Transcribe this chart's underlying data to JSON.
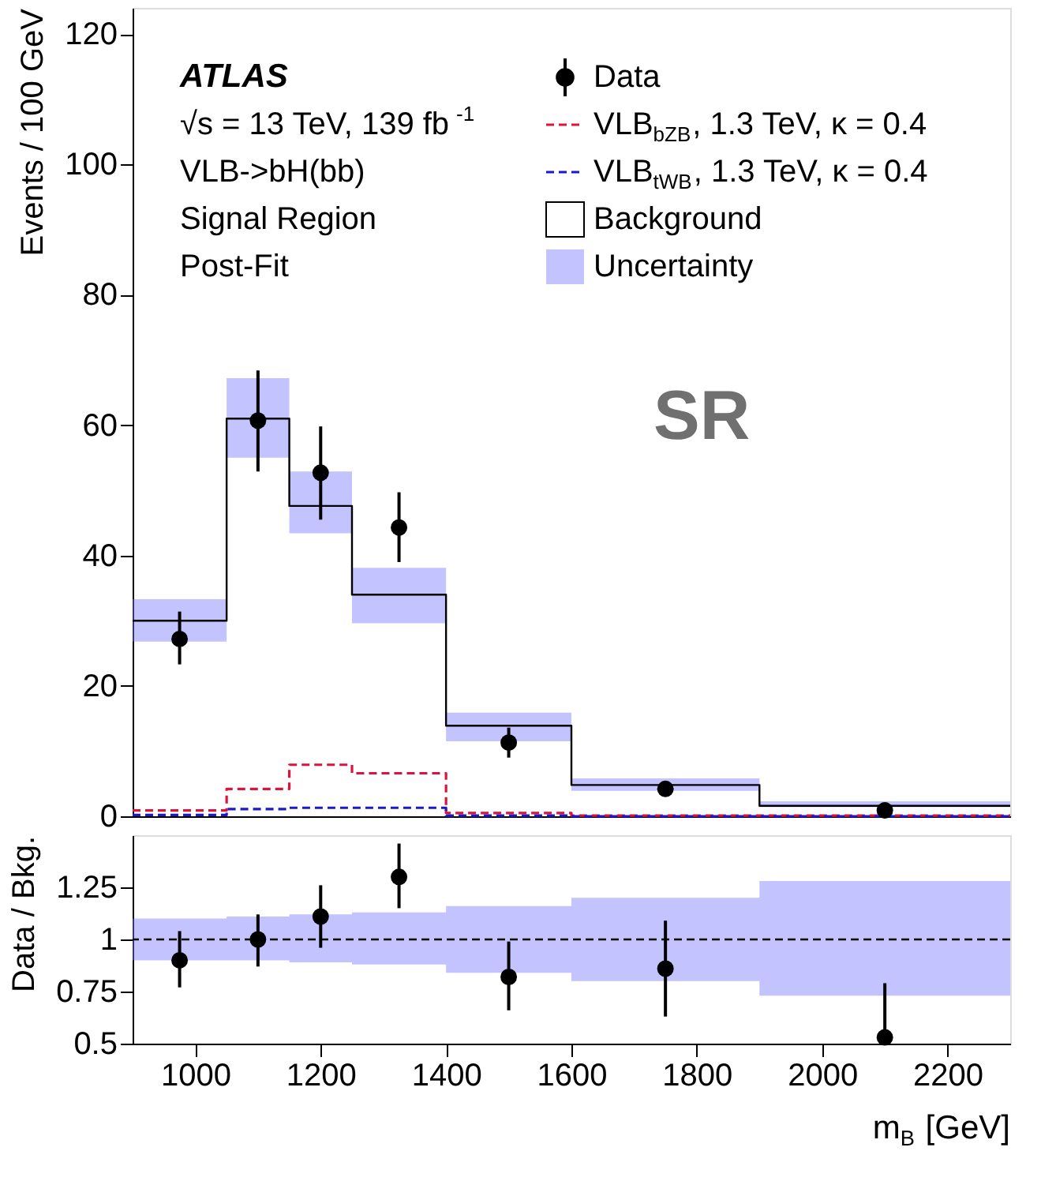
{
  "chart_data": [
    {
      "type": "step",
      "ylabel": "Events / 100 GeV",
      "xlim": [
        900,
        2300
      ],
      "ylim": [
        0,
        124
      ],
      "yticks": [
        0,
        20,
        40,
        60,
        80,
        100,
        120
      ],
      "tick_labels": "y",
      "legend": "top right",
      "grid": false,
      "annotations": [
        "ATLAS",
        "√s = 13 TeV, 139 fb$^{-1}$",
        "VLB->bH(bb)",
        "Signal Region",
        "Post-Fit",
        "SR"
      ],
      "series": [
        {
          "name": "Data",
          "type": "scatter",
          "marker": "circle",
          "color": "#000000",
          "x": [
            975,
            1100,
            1200,
            1325,
            1500,
            1750,
            2100
          ],
          "values": [
            27.2,
            60.7,
            52.7,
            44.3,
            11.3,
            4.2,
            0.9
          ],
          "errors": [
            [
              23.3,
              31.4
            ],
            [
              52.9,
              68.4
            ],
            [
              45.5,
              59.8
            ],
            [
              39,
              49.7
            ],
            [
              9,
              13.6
            ],
            null,
            null
          ]
        },
        {
          "name": "VLB$_{bZB}$, 1.3 TeV, κ = 0.4",
          "line_style": "dashed",
          "color": "#dc143c",
          "x": [
            900,
            1050,
            1150,
            1250,
            1400,
            1600,
            1900,
            2300
          ],
          "values": [
            0.9,
            4.2,
            7.9,
            6.6,
            0.5,
            0.1,
            0.1,
            0.1
          ]
        },
        {
          "name": "VLB$_{tWB}$, 1.3 TeV, κ = 0.4",
          "line_style": "dashed",
          "color": "#1a1acc",
          "x": [
            900,
            1050,
            1150,
            1250,
            1400,
            1600,
            1900,
            2300
          ],
          "values": [
            0.2,
            1.1,
            1.3,
            1.3,
            0.1,
            0,
            0,
            0
          ]
        },
        {
          "name": "Background",
          "line_style": "solid",
          "color": "#000000",
          "x": [
            900,
            1050,
            1150,
            1250,
            1400,
            1600,
            1900,
            2300
          ],
          "values": [
            30,
            61,
            47.6,
            34,
            13.9,
            4.8,
            1.6,
            1.6
          ]
        },
        {
          "name": "Uncertainty",
          "type": "area",
          "color": "#7b7bff",
          "x": [
            900,
            1050,
            1150,
            1250,
            1400,
            1600,
            1900,
            2300
          ],
          "values": [
            null,
            null,
            null,
            null,
            null,
            null,
            null,
            null
          ],
          "lower": [
            26.8,
            55,
            43.4,
            29.6,
            11.5,
            3.9,
            1.4,
            1.4
          ],
          "upper": [
            33.3,
            67.2,
            52.9,
            38.1,
            15.9,
            5.8,
            2.3,
            2.3
          ]
        }
      ]
    },
    {
      "type": "scatter",
      "ylabel": "Data / Bkg.",
      "xlabel": "m$_{B}$ [GeV]",
      "xlim": [
        900,
        2300
      ],
      "xticks": [
        1000,
        1200,
        1400,
        1600,
        1800,
        2000,
        2200
      ],
      "ylim": [
        0.5,
        1.5
      ],
      "yticks": [
        0.5,
        0.75,
        1,
        1.25
      ],
      "grid": false,
      "ref_lines": [
        {
          "axis": "y",
          "value": 1,
          "line_style": "dashed",
          "color": "#000000"
        }
      ],
      "series": [
        {
          "type": "area",
          "color": "#7b7bff",
          "x": [
            900,
            1050,
            1150,
            1250,
            1400,
            1600,
            1900,
            2300
          ],
          "values": [
            null,
            null,
            null,
            null,
            null,
            null,
            null,
            null
          ],
          "lower": [
            0.9,
            0.9,
            0.89,
            0.88,
            0.84,
            0.8,
            0.73,
            0.73
          ],
          "upper": [
            1.1,
            1.11,
            1.12,
            1.13,
            1.16,
            1.2,
            1.28,
            1.28
          ]
        },
        {
          "marker": "circle",
          "color": "#000000",
          "x": [
            975,
            1100,
            1200,
            1325,
            1500,
            1750,
            2100
          ],
          "values": [
            0.9,
            1.0,
            1.11,
            1.3,
            0.82,
            0.86,
            0.53
          ],
          "errors": [
            [
              0.77,
              1.04
            ],
            [
              0.87,
              1.12
            ],
            [
              0.96,
              1.26
            ],
            [
              1.15,
              1.46
            ],
            [
              0.66,
              0.99
            ],
            [
              0.63,
              1.09
            ],
            [
              0.5,
              0.79
            ]
          ]
        }
      ]
    }
  ]
}
